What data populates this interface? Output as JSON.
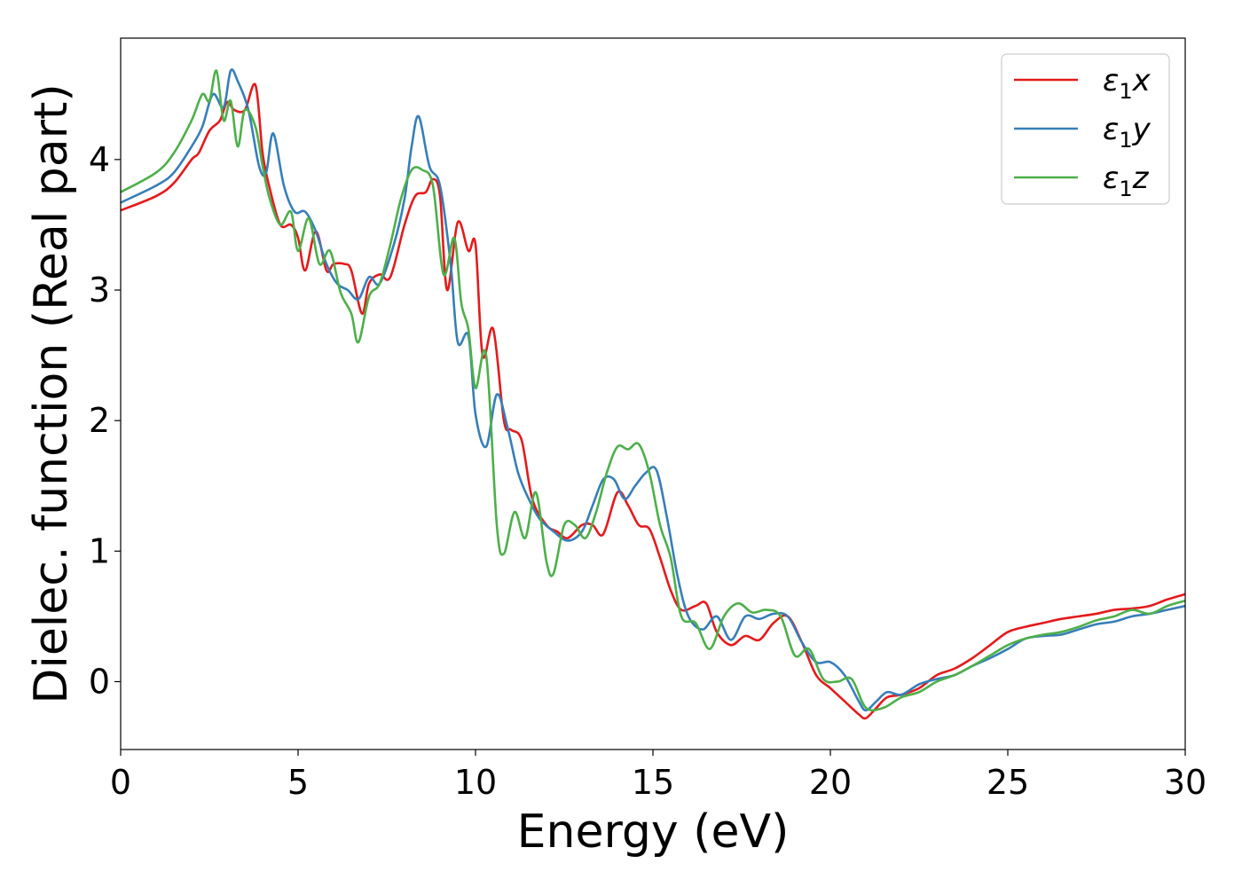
{
  "chart_data": {
    "type": "line",
    "title": "",
    "xlabel": "Energy (eV)",
    "ylabel": "Dielec. function (Real part)",
    "xlim": [
      0,
      30
    ],
    "ylim": [
      -0.52,
      4.93
    ],
    "xticks": [
      0,
      5,
      10,
      15,
      20,
      25,
      30
    ],
    "xtick_labels": [
      "0",
      "5",
      "10",
      "15",
      "20",
      "25",
      "30"
    ],
    "yticks": [
      0,
      1,
      2,
      3,
      4
    ],
    "ytick_labels": [
      "0",
      "1",
      "2",
      "3",
      "4"
    ],
    "grid": false,
    "legend_position": "top-right",
    "series": [
      {
        "name": "ε1x",
        "legend_main": "ε",
        "legend_sub": "1",
        "legend_suffix": "x",
        "color": "#e41a1c",
        "x": [
          0,
          1,
          1.5,
          2,
          2.2,
          2.5,
          2.8,
          3.0,
          3.2,
          3.5,
          3.8,
          4.0,
          4.2,
          4.5,
          4.8,
          5.0,
          5.2,
          5.5,
          5.8,
          6.0,
          6.3,
          6.5,
          6.8,
          7.0,
          7.3,
          7.6,
          8.0,
          8.3,
          8.6,
          8.8,
          9.0,
          9.2,
          9.5,
          9.8,
          10.0,
          10.2,
          10.5,
          10.8,
          11.0,
          11.3,
          11.6,
          12.0,
          12.3,
          12.6,
          13.0,
          13.3,
          13.6,
          14.0,
          14.3,
          14.6,
          14.9,
          15.2,
          15.5,
          15.8,
          16.2,
          16.5,
          16.8,
          17.2,
          17.6,
          18.0,
          18.4,
          18.8,
          19.2,
          19.6,
          20.0,
          20.4,
          20.8,
          21.0,
          21.3,
          21.6,
          22.0,
          22.5,
          23.0,
          23.5,
          24.0,
          24.5,
          25.0,
          25.5,
          26.0,
          26.5,
          27.0,
          27.5,
          28.0,
          28.5,
          29.0,
          29.5,
          30.0
        ],
        "y": [
          3.61,
          3.72,
          3.82,
          4.0,
          4.05,
          4.22,
          4.3,
          4.44,
          4.38,
          4.38,
          4.57,
          4.05,
          3.78,
          3.5,
          3.5,
          3.4,
          3.15,
          3.45,
          3.15,
          3.2,
          3.2,
          3.15,
          2.82,
          3.05,
          3.12,
          3.1,
          3.5,
          3.72,
          3.75,
          3.85,
          3.72,
          3.0,
          3.52,
          3.3,
          3.35,
          2.5,
          2.7,
          2.0,
          1.93,
          1.85,
          1.4,
          1.2,
          1.15,
          1.1,
          1.2,
          1.2,
          1.13,
          1.45,
          1.35,
          1.2,
          1.17,
          0.95,
          0.7,
          0.55,
          0.58,
          0.6,
          0.38,
          0.28,
          0.35,
          0.32,
          0.45,
          0.5,
          0.3,
          0.05,
          -0.05,
          -0.15,
          -0.25,
          -0.28,
          -0.2,
          -0.12,
          -0.1,
          -0.05,
          0.05,
          0.1,
          0.18,
          0.28,
          0.38,
          0.42,
          0.45,
          0.48,
          0.5,
          0.52,
          0.55,
          0.56,
          0.58,
          0.63,
          0.67
        ]
      },
      {
        "name": "ε1y",
        "legend_main": "ε",
        "legend_sub": "1",
        "legend_suffix": "y",
        "color": "#377eb8",
        "x": [
          0,
          1,
          1.5,
          2,
          2.3,
          2.6,
          2.9,
          3.1,
          3.3,
          3.6,
          3.9,
          4.1,
          4.3,
          4.6,
          4.9,
          5.2,
          5.5,
          5.8,
          6.1,
          6.4,
          6.7,
          7.0,
          7.3,
          7.7,
          8.0,
          8.2,
          8.4,
          8.7,
          9.0,
          9.3,
          9.5,
          9.8,
          10.0,
          10.3,
          10.6,
          10.9,
          11.2,
          11.5,
          11.8,
          12.2,
          12.6,
          13.0,
          13.3,
          13.6,
          13.9,
          14.2,
          14.5,
          14.8,
          15.1,
          15.4,
          15.7,
          16.0,
          16.4,
          16.8,
          17.2,
          17.6,
          18.0,
          18.4,
          18.8,
          19.2,
          19.6,
          20.0,
          20.4,
          20.8,
          21.0,
          21.3,
          21.6,
          22.0,
          22.5,
          23.0,
          23.5,
          24.0,
          24.5,
          25.0,
          25.5,
          26.0,
          26.5,
          27.0,
          27.5,
          28.0,
          28.5,
          29.0,
          29.5,
          30.0
        ],
        "y": [
          3.67,
          3.8,
          3.9,
          4.1,
          4.25,
          4.5,
          4.4,
          4.68,
          4.6,
          4.38,
          3.95,
          3.9,
          4.2,
          3.8,
          3.6,
          3.6,
          3.45,
          3.2,
          3.05,
          3.0,
          2.93,
          3.1,
          3.05,
          3.35,
          3.7,
          4.1,
          4.33,
          3.95,
          3.8,
          3.2,
          2.6,
          2.65,
          2.05,
          1.8,
          2.2,
          1.95,
          1.6,
          1.4,
          1.25,
          1.15,
          1.08,
          1.15,
          1.35,
          1.55,
          1.55,
          1.4,
          1.5,
          1.6,
          1.62,
          1.25,
          0.8,
          0.5,
          0.4,
          0.5,
          0.32,
          0.5,
          0.48,
          0.52,
          0.5,
          0.3,
          0.15,
          0.15,
          0.05,
          -0.15,
          -0.22,
          -0.15,
          -0.08,
          -0.1,
          -0.02,
          0.02,
          0.05,
          0.12,
          0.18,
          0.25,
          0.33,
          0.35,
          0.36,
          0.4,
          0.44,
          0.46,
          0.5,
          0.52,
          0.55,
          0.58
        ]
      },
      {
        "name": "ε1z",
        "legend_main": "ε",
        "legend_sub": "1",
        "legend_suffix": "z",
        "color": "#4daf4a",
        "x": [
          0,
          1,
          1.5,
          2,
          2.3,
          2.5,
          2.7,
          2.9,
          3.1,
          3.3,
          3.5,
          3.8,
          4.0,
          4.2,
          4.5,
          4.8,
          5.0,
          5.3,
          5.6,
          5.9,
          6.2,
          6.5,
          6.7,
          7.0,
          7.3,
          7.6,
          7.9,
          8.2,
          8.5,
          8.8,
          9.1,
          9.4,
          9.6,
          9.8,
          10.0,
          10.3,
          10.6,
          10.8,
          11.1,
          11.4,
          11.7,
          12.0,
          12.2,
          12.5,
          12.8,
          13.1,
          13.4,
          13.7,
          14.0,
          14.3,
          14.6,
          14.9,
          15.2,
          15.5,
          15.8,
          16.2,
          16.6,
          17.0,
          17.4,
          17.8,
          18.2,
          18.6,
          19.0,
          19.4,
          19.8,
          20.2,
          20.6,
          21.0,
          21.5,
          22.0,
          22.5,
          23.0,
          23.5,
          24.0,
          24.5,
          25.0,
          25.5,
          26.0,
          26.5,
          27.0,
          27.5,
          28.0,
          28.5,
          29.0,
          29.5,
          30.0
        ],
        "y": [
          3.75,
          3.9,
          4.05,
          4.3,
          4.5,
          4.45,
          4.68,
          4.3,
          4.45,
          4.1,
          4.38,
          4.25,
          3.95,
          3.7,
          3.5,
          3.6,
          3.3,
          3.55,
          3.2,
          3.3,
          2.98,
          2.82,
          2.6,
          2.95,
          3.05,
          3.35,
          3.7,
          3.92,
          3.92,
          3.8,
          3.12,
          3.4,
          2.9,
          2.7,
          2.25,
          2.5,
          1.2,
          0.98,
          1.3,
          1.1,
          1.45,
          0.92,
          0.83,
          1.2,
          1.2,
          1.1,
          1.3,
          1.6,
          1.8,
          1.78,
          1.82,
          1.6,
          1.2,
          0.95,
          0.5,
          0.45,
          0.25,
          0.5,
          0.6,
          0.53,
          0.55,
          0.5,
          0.2,
          0.25,
          0.02,
          0.0,
          0.02,
          -0.2,
          -0.2,
          -0.12,
          -0.08,
          0.0,
          0.05,
          0.12,
          0.2,
          0.28,
          0.33,
          0.36,
          0.38,
          0.42,
          0.47,
          0.5,
          0.55,
          0.52,
          0.58,
          0.62
        ]
      }
    ]
  }
}
